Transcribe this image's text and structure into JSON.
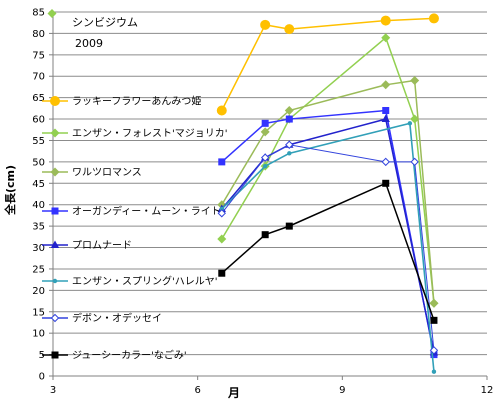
{
  "chart_data": {
    "type": "line",
    "title": "シンビジウム",
    "subtitle": "2009",
    "xlabel": "月",
    "ylabel": "全長(cm)",
    "xlim": [
      3,
      12
    ],
    "ylim": [
      0,
      85
    ],
    "xticks": [
      3,
      6,
      9,
      12
    ],
    "yticks": [
      0,
      5,
      10,
      15,
      20,
      25,
      30,
      35,
      40,
      45,
      50,
      55,
      60,
      65,
      70,
      75,
      80,
      85
    ],
    "grid": "horizontal",
    "legend_position": "left-inside",
    "series": [
      {
        "name": "ラッキーフラワーあんみつ姫",
        "color": "#ffc000",
        "marker": "circle",
        "x": [
          6.5,
          7.4,
          7.9,
          9.9,
          10.9
        ],
        "y": [
          62,
          82,
          81,
          83,
          83.5
        ]
      },
      {
        "name": "エンザン・フォレスト'マジョリカ'",
        "color": "#92d050",
        "marker": "diamond",
        "x": [
          6.5,
          7.4,
          7.9,
          9.9,
          10.5,
          10.9
        ],
        "y": [
          32,
          49,
          60,
          79,
          60,
          17
        ]
      },
      {
        "name": "ワルツロマンス",
        "color": "#9bbb59",
        "marker": "diamond",
        "x": [
          6.5,
          7.4,
          7.9,
          9.9,
          10.5,
          10.9
        ],
        "y": [
          40,
          57,
          62,
          68,
          69,
          17
        ]
      },
      {
        "name": "オーガンディー・ムーン・ライト",
        "color": "#3333ff",
        "marker": "square",
        "x": [
          6.5,
          7.4,
          7.9,
          9.9,
          10.9
        ],
        "y": [
          50,
          59,
          60,
          62,
          5
        ]
      },
      {
        "name": "プロムナード",
        "color": "#2222cc",
        "marker": "triangle",
        "x": [
          6.5,
          7.4,
          7.9,
          9.9,
          10.9
        ],
        "y": [
          39,
          51,
          54,
          60,
          5.5
        ]
      },
      {
        "name": "エンザン・スプリング'ハレルヤ'",
        "color": "#31a0b8",
        "marker": "dot",
        "x": [
          6.5,
          7.4,
          7.9,
          10.4,
          10.9
        ],
        "y": [
          39,
          49,
          52,
          59,
          1
        ]
      },
      {
        "name": "デボン・オデッセイ",
        "color": "#3344dd",
        "marker": "open-diamond",
        "x": [
          6.5,
          7.4,
          7.9,
          9.9,
          10.5,
          10.9
        ],
        "y": [
          38,
          51,
          54,
          50,
          50,
          6
        ]
      },
      {
        "name": "ジューシーカラー'なごみ'",
        "color": "#000000",
        "marker": "square",
        "x": [
          6.5,
          7.4,
          7.9,
          9.9,
          10.9
        ],
        "y": [
          24,
          33,
          35,
          45,
          13
        ]
      }
    ]
  }
}
